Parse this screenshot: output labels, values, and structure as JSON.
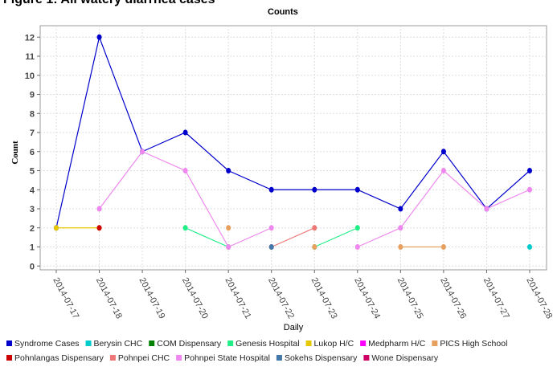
{
  "chart_data": {
    "type": "line",
    "figure_title": "Figure 1: All watery diarrhea cases",
    "title": "Counts",
    "x_label": "Daily",
    "y_label": "Count",
    "categories": [
      "2014-07-17",
      "2014-07-18",
      "2014-07-19",
      "2014-07-20",
      "2014-07-21",
      "2014-07-22",
      "2014-07-23",
      "2014-07-24",
      "2014-07-25",
      "2014-07-26",
      "2014-07-27",
      "2014-07-28"
    ],
    "ylim": [
      -0.2,
      12.6
    ],
    "yticks": [
      0,
      1,
      2,
      3,
      4,
      5,
      6,
      7,
      8,
      9,
      10,
      11,
      12
    ],
    "grid": true,
    "legend": "bottom",
    "series": [
      {
        "name": "Syndrome Cases",
        "color": "#0000cc",
        "values": [
          2,
          12,
          6,
          7,
          5,
          4,
          4,
          4,
          3,
          6,
          3,
          5
        ]
      },
      {
        "name": "Berysin CHC",
        "color": "#00cccc",
        "values": [
          null,
          null,
          null,
          null,
          null,
          null,
          null,
          null,
          null,
          null,
          null,
          1
        ]
      },
      {
        "name": "COM Dispensary",
        "color": "#008000",
        "values": [
          null,
          null,
          null,
          null,
          null,
          null,
          null,
          null,
          null,
          null,
          null,
          null
        ]
      },
      {
        "name": "Genesis Hospital",
        "color": "#22ee88",
        "values": [
          null,
          null,
          null,
          2,
          1,
          null,
          1,
          2,
          null,
          null,
          null,
          null
        ]
      },
      {
        "name": "Lukop H/C",
        "color": "#e6c800",
        "values": [
          2,
          2,
          null,
          null,
          null,
          null,
          null,
          null,
          null,
          null,
          null,
          null
        ]
      },
      {
        "name": "Medpharm H/C",
        "color": "#ff00ff",
        "values": [
          null,
          null,
          null,
          null,
          null,
          null,
          null,
          null,
          null,
          null,
          null,
          null
        ]
      },
      {
        "name": "PICS High School",
        "color": "#e8a060",
        "values": [
          null,
          null,
          null,
          null,
          2,
          null,
          1,
          null,
          1,
          1,
          null,
          null
        ]
      },
      {
        "name": "Pohnlangas Dispensary",
        "color": "#cc0000",
        "values": [
          null,
          2,
          null,
          null,
          null,
          null,
          null,
          null,
          null,
          null,
          null,
          null
        ]
      },
      {
        "name": "Pohnpei CHC",
        "color": "#ee7777",
        "values": [
          null,
          null,
          null,
          null,
          null,
          1,
          2,
          null,
          null,
          null,
          null,
          null
        ]
      },
      {
        "name": "Pohnpei State Hospital",
        "color": "#ee88ee",
        "values": [
          null,
          3,
          6,
          5,
          1,
          2,
          null,
          1,
          2,
          5,
          3,
          4
        ]
      },
      {
        "name": "Sokehs Dispensary",
        "color": "#4477aa",
        "values": [
          null,
          null,
          null,
          null,
          null,
          1,
          null,
          null,
          null,
          null,
          null,
          null
        ]
      },
      {
        "name": "Wone Dispensary",
        "color": "#cc0066",
        "values": [
          null,
          null,
          null,
          null,
          null,
          null,
          null,
          null,
          null,
          null,
          null,
          null
        ]
      }
    ]
  }
}
